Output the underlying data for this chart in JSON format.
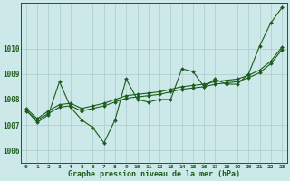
{
  "title": "Graphe pression niveau de la mer (hPa)",
  "bg_color": "#cce8e8",
  "grid_color": "#aacccc",
  "line_color": "#1a5c1a",
  "x_labels": [
    "0",
    "1",
    "2",
    "3",
    "4",
    "5",
    "6",
    "7",
    "8",
    "9",
    "10",
    "11",
    "12",
    "13",
    "14",
    "15",
    "16",
    "17",
    "18",
    "19",
    "20",
    "21",
    "22",
    "23"
  ],
  "ylim": [
    1005.5,
    1011.8
  ],
  "yticks": [
    1006,
    1007,
    1008,
    1009,
    1010
  ],
  "series1": [
    1007.6,
    1007.1,
    1007.4,
    1008.7,
    1007.7,
    1007.2,
    1006.9,
    1006.3,
    1007.2,
    1008.8,
    1008.0,
    1007.9,
    1008.0,
    1008.0,
    1009.2,
    1009.1,
    1008.5,
    1008.8,
    1008.6,
    1008.6,
    1009.0,
    1010.1,
    1011.0,
    1011.6
  ],
  "series2": [
    1007.55,
    1007.2,
    1007.45,
    1007.7,
    1007.75,
    1007.55,
    1007.65,
    1007.75,
    1007.9,
    1008.05,
    1008.1,
    1008.15,
    1008.2,
    1008.3,
    1008.4,
    1008.45,
    1008.5,
    1008.6,
    1008.65,
    1008.7,
    1008.85,
    1009.05,
    1009.4,
    1009.95
  ],
  "series3": [
    1007.65,
    1007.25,
    1007.55,
    1007.8,
    1007.85,
    1007.65,
    1007.75,
    1007.85,
    1008.0,
    1008.15,
    1008.2,
    1008.25,
    1008.3,
    1008.4,
    1008.5,
    1008.55,
    1008.6,
    1008.7,
    1008.75,
    1008.8,
    1008.95,
    1009.15,
    1009.5,
    1010.05
  ]
}
